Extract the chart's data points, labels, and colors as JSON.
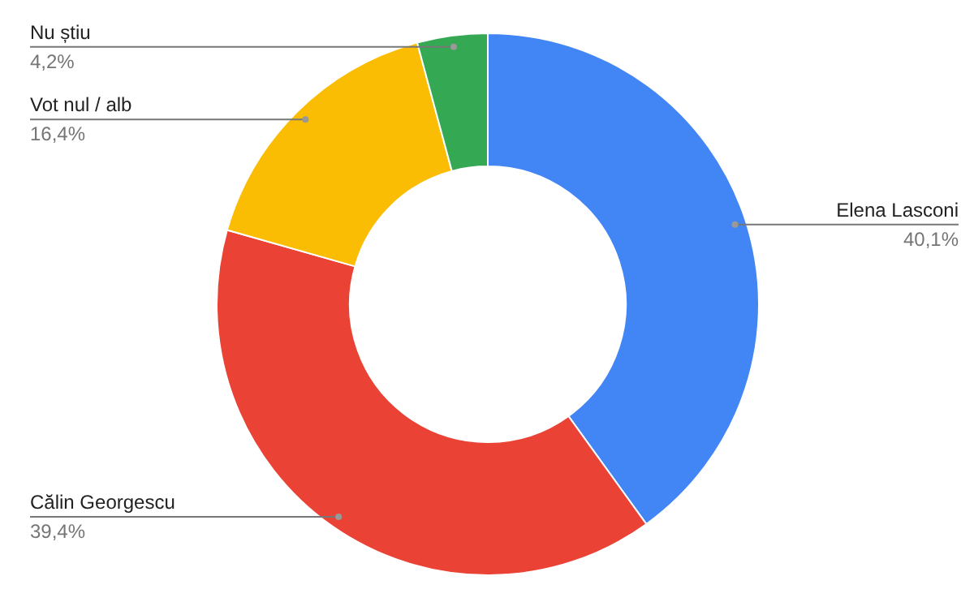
{
  "chart_data": {
    "type": "donut",
    "categories": [
      "Elena Lasconi",
      "Călin Georgescu",
      "Vot nul / alb",
      "Nu știu"
    ],
    "values": [
      40.1,
      39.4,
      16.4,
      4.2
    ],
    "colors": [
      "#4285f4",
      "#ea4335",
      "#fbbc04",
      "#34a853"
    ],
    "value_labels": [
      "40,1%",
      "39,4%",
      "16,4%",
      "4,2%"
    ]
  }
}
